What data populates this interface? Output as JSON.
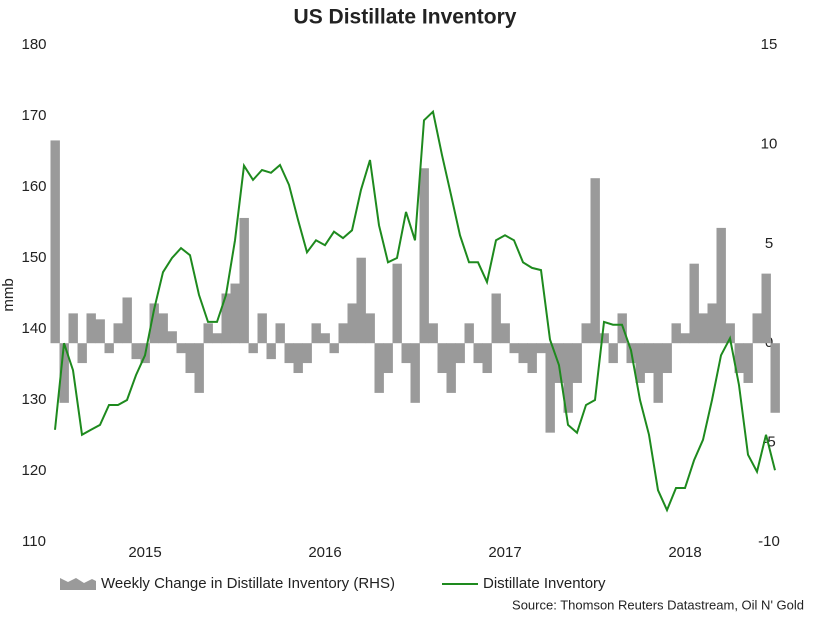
{
  "chart_data": {
    "type": "combo",
    "title": "US Distillate Inventory",
    "y_label": "mmb",
    "source": "Source: Thomson Reuters Datastream, Oil N' Gold",
    "xlim": [
      2014.5,
      2018.5
    ],
    "xticks": [
      2015,
      2016,
      2017,
      2018
    ],
    "ylim": [
      110,
      180
    ],
    "yticks": [
      110,
      120,
      130,
      140,
      150,
      160,
      170,
      180
    ],
    "y2lim": [
      -10,
      15
    ],
    "y2ticks": [
      -10,
      -5,
      0,
      5,
      10,
      15
    ],
    "grid": false,
    "x": [
      2014.5,
      2014.55,
      2014.6,
      2014.65,
      2014.7,
      2014.75,
      2014.8,
      2014.85,
      2014.9,
      2014.95,
      2015.0,
      2015.05,
      2015.1,
      2015.15,
      2015.2,
      2015.25,
      2015.3,
      2015.35,
      2015.4,
      2015.45,
      2015.5,
      2015.55,
      2015.6,
      2015.65,
      2015.7,
      2015.75,
      2015.8,
      2015.85,
      2015.9,
      2015.95,
      2016.0,
      2016.05,
      2016.1,
      2016.15,
      2016.2,
      2016.25,
      2016.3,
      2016.35,
      2016.4,
      2016.45,
      2016.5,
      2016.55,
      2016.6,
      2016.65,
      2016.7,
      2016.75,
      2016.8,
      2016.85,
      2016.9,
      2016.95,
      2017.0,
      2017.05,
      2017.1,
      2017.15,
      2017.2,
      2017.25,
      2017.3,
      2017.35,
      2017.4,
      2017.45,
      2017.5,
      2017.55,
      2017.6,
      2017.65,
      2017.7,
      2017.75,
      2017.8,
      2017.85,
      2017.9,
      2017.95,
      2018.0,
      2018.05,
      2018.1,
      2018.15,
      2018.2,
      2018.25,
      2018.3,
      2018.35,
      2018.4,
      2018.45,
      2018.5
    ],
    "series": [
      {
        "name": "Weekly Change in Distillate Inventory (RHS)",
        "type": "bar",
        "axis": "y2",
        "color": "#9a9a9a",
        "values": [
          10.2,
          -3,
          1.5,
          -1,
          1.5,
          1.2,
          -0.5,
          1,
          2.3,
          -0.8,
          -1,
          2,
          1.5,
          0.6,
          -0.5,
          -1.5,
          -2.5,
          1,
          0.5,
          2.5,
          3,
          6.3,
          -0.5,
          1.5,
          -0.8,
          1,
          -1,
          -1.5,
          -1,
          1,
          0.5,
          -0.5,
          1,
          2,
          4.3,
          1.5,
          -2.5,
          -1.5,
          4,
          -1,
          -3,
          8.8,
          1,
          -1.5,
          -2.5,
          -1,
          1,
          -1,
          -1.5,
          2.5,
          1,
          -0.5,
          -1,
          -1.5,
          -0.5,
          -4.5,
          -2,
          -3.5,
          -2,
          1,
          8.3,
          0.5,
          -1,
          1.5,
          -1,
          -2,
          -1.5,
          -3,
          -1.5,
          1,
          0.5,
          4,
          1.5,
          2,
          5.8,
          1,
          -1.5,
          -2,
          1.5,
          3.5,
          -3.5
        ]
      },
      {
        "name": "Distillate Inventory",
        "type": "line",
        "axis": "y",
        "color": "#1e8a1e",
        "values": [
          125.8,
          138,
          134.2,
          125.1,
          125.8,
          126.5,
          129.3,
          129.3,
          130,
          133.5,
          136.3,
          142.7,
          148,
          150,
          151.4,
          150.4,
          144.8,
          141,
          141,
          144.8,
          152.5,
          163,
          161,
          162.4,
          162,
          163.1,
          160.3,
          155.4,
          150.8,
          152.5,
          151.8,
          153.7,
          152.8,
          153.9,
          159.6,
          163.8,
          154.6,
          149.4,
          150,
          156.5,
          152.5,
          169.4,
          170.6,
          164.5,
          158.9,
          153.2,
          149.4,
          149.4,
          146.6,
          152.5,
          153.2,
          152.5,
          149.4,
          148.6,
          148.3,
          138.5,
          134.9,
          126.5,
          125.4,
          129.3,
          130,
          141,
          140.6,
          140.6,
          137,
          130,
          125.1,
          117.3,
          114.5,
          117.6,
          117.6,
          121.5,
          124.4,
          130,
          136.3,
          138.7,
          132.1,
          122.3,
          119.9,
          125.1,
          120.1
        ]
      }
    ]
  }
}
